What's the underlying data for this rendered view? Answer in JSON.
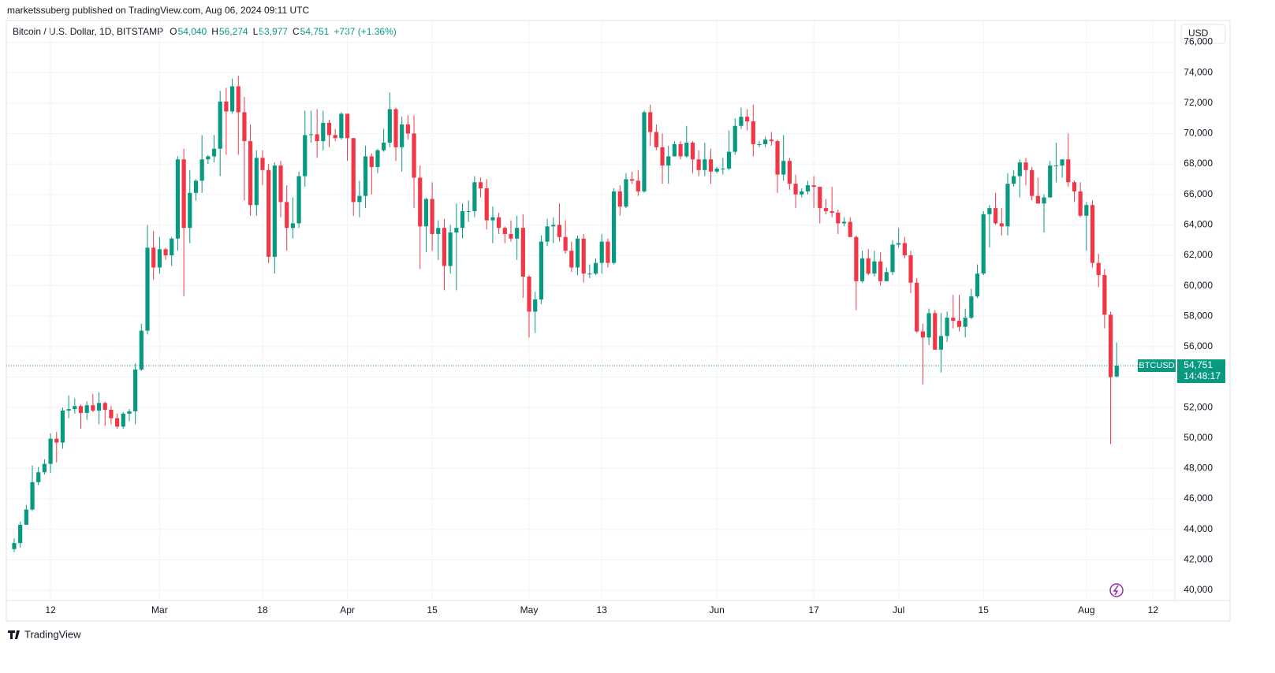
{
  "header": {
    "published": "marketssuberg published on TradingView.com, Aug 06, 2024 09:11 UTC",
    "symbol": "Bitcoin / U.S. Dollar, 1D, BITSTAMP",
    "ohlc": [
      {
        "key": "O",
        "text": "54,040"
      },
      {
        "key": "H",
        "text": "56,274"
      },
      {
        "key": "L",
        "text": "53,977"
      },
      {
        "key": "C",
        "text": "54,751"
      }
    ],
    "change": "+737 (+1.36%)",
    "currency": "USD"
  },
  "footer": {
    "brand": "TradingView"
  },
  "chart_data": {
    "type": "candlestick",
    "up_color": "#089981",
    "down_color": "#f23645",
    "grid": true,
    "ylim": [
      39325,
      77425
    ],
    "yticks": [
      {
        "value": 40000,
        "label": "40,000"
      },
      {
        "value": 42000,
        "label": "42,000"
      },
      {
        "value": 44000,
        "label": "44,000"
      },
      {
        "value": 46000,
        "label": "46,000"
      },
      {
        "value": 48000,
        "label": "48,000"
      },
      {
        "value": 50000,
        "label": "50,000"
      },
      {
        "value": 52000,
        "label": "52,000"
      },
      {
        "value": 54000,
        "label": "54,000"
      },
      {
        "value": 56000,
        "label": "56,000"
      },
      {
        "value": 58000,
        "label": "58,000"
      },
      {
        "value": 60000,
        "label": "60,000"
      },
      {
        "value": 62000,
        "label": "62,000"
      },
      {
        "value": 64000,
        "label": "64,000"
      },
      {
        "value": 66000,
        "label": "66,000"
      },
      {
        "value": 68000,
        "label": "68,000"
      },
      {
        "value": 70000,
        "label": "70,000"
      },
      {
        "value": 72000,
        "label": "72,000"
      },
      {
        "value": 74000,
        "label": "74,000"
      },
      {
        "value": 76000,
        "label": "76,000"
      }
    ],
    "xlim": [
      -1.3,
      191.6
    ],
    "xticks": [
      {
        "value": 6,
        "label": "12"
      },
      {
        "value": 24,
        "label": "Mar"
      },
      {
        "value": 41,
        "label": "18"
      },
      {
        "value": 55,
        "label": "Apr"
      },
      {
        "value": 69,
        "label": "15"
      },
      {
        "value": 85,
        "label": "May"
      },
      {
        "value": 97,
        "label": "13"
      },
      {
        "value": 116,
        "label": "Jun"
      },
      {
        "value": 132,
        "label": "17"
      },
      {
        "value": 146,
        "label": "Jul"
      },
      {
        "value": 160,
        "label": "15"
      },
      {
        "value": 177,
        "label": "Aug"
      },
      {
        "value": 188,
        "label": "12"
      }
    ],
    "last_price": {
      "value": 54751,
      "label": "54,751",
      "symbol": "BTCUSD",
      "countdown": "14:48:17"
    },
    "candles": [
      [
        42700,
        43400,
        42500,
        43100
      ],
      [
        43100,
        44500,
        42800,
        44300
      ],
      [
        44300,
        45600,
        44300,
        45300
      ],
      [
        45300,
        48200,
        45200,
        47100
      ],
      [
        47100,
        48100,
        46900,
        47750
      ],
      [
        47750,
        48600,
        47600,
        48300
      ],
      [
        48300,
        50300,
        47700,
        49950
      ],
      [
        49950,
        50400,
        48400,
        49700
      ],
      [
        49700,
        52000,
        49300,
        51800
      ],
      [
        51800,
        52800,
        51300,
        51900
      ],
      [
        51900,
        52600,
        51600,
        52100
      ],
      [
        52100,
        52200,
        50600,
        51650
      ],
      [
        51650,
        52400,
        51200,
        52150
      ],
      [
        52150,
        52900,
        51700,
        51800
      ],
      [
        51800,
        53000,
        50900,
        52300
      ],
      [
        52300,
        52400,
        50800,
        51850
      ],
      [
        51850,
        52100,
        50900,
        51300
      ],
      [
        51300,
        51600,
        50600,
        50750
      ],
      [
        50750,
        51700,
        50600,
        51600
      ],
      [
        51600,
        51900,
        51100,
        51750
      ],
      [
        51750,
        54900,
        50900,
        54500
      ],
      [
        54500,
        57500,
        54400,
        57050
      ],
      [
        57050,
        64000,
        56800,
        62500
      ],
      [
        62500,
        63600,
        60400,
        61200
      ],
      [
        61200,
        63200,
        60800,
        62400
      ],
      [
        62400,
        62500,
        61700,
        62000
      ],
      [
        62000,
        63200,
        61300,
        63100
      ],
      [
        63100,
        68500,
        62300,
        68300
      ],
      [
        68300,
        69000,
        59300,
        63800
      ],
      [
        63800,
        67600,
        62800,
        66100
      ],
      [
        66100,
        67000,
        65600,
        66900
      ],
      [
        66900,
        69900,
        66100,
        68300
      ],
      [
        68300,
        68600,
        68000,
        68500
      ],
      [
        68500,
        69900,
        68100,
        69000
      ],
      [
        69000,
        72800,
        67200,
        72100
      ],
      [
        72100,
        73000,
        68600,
        71450
      ],
      [
        71450,
        73600,
        71300,
        73100
      ],
      [
        73100,
        73800,
        68600,
        71400
      ],
      [
        71400,
        72400,
        65600,
        69500
      ],
      [
        69500,
        70600,
        64600,
        65300
      ],
      [
        65300,
        68900,
        64600,
        68400
      ],
      [
        68400,
        68900,
        66600,
        67600
      ],
      [
        67600,
        68000,
        61500,
        61900
      ],
      [
        61900,
        68100,
        60800,
        67900
      ],
      [
        67900,
        68200,
        64500,
        65500
      ],
      [
        65500,
        66600,
        62300,
        63800
      ],
      [
        63800,
        65800,
        63100,
        64100
      ],
      [
        64100,
        67500,
        63800,
        67200
      ],
      [
        67200,
        71500,
        66500,
        69900
      ],
      [
        69900,
        71500,
        69400,
        69950
      ],
      [
        69950,
        71600,
        68400,
        69500
      ],
      [
        69500,
        71500,
        68900,
        70700
      ],
      [
        70700,
        70900,
        69100,
        69900
      ],
      [
        69900,
        70300,
        69500,
        69700
      ],
      [
        69700,
        71400,
        69600,
        71300
      ],
      [
        71300,
        71300,
        68200,
        69700
      ],
      [
        69700,
        69700,
        64600,
        65500
      ],
      [
        65500,
        66900,
        64500,
        65900
      ],
      [
        65900,
        69200,
        65100,
        68500
      ],
      [
        68500,
        68700,
        66000,
        67800
      ],
      [
        67800,
        69000,
        67400,
        68900
      ],
      [
        68900,
        70300,
        68800,
        69400
      ],
      [
        69400,
        72700,
        69100,
        71600
      ],
      [
        71600,
        71700,
        68200,
        69100
      ],
      [
        69100,
        71100,
        67500,
        70600
      ],
      [
        70600,
        71200,
        69600,
        70000
      ],
      [
        70000,
        71200,
        65100,
        67100
      ],
      [
        67100,
        67900,
        61100,
        63900
      ],
      [
        63900,
        65800,
        62200,
        65700
      ],
      [
        65700,
        66800,
        62300,
        63400
      ],
      [
        63400,
        64300,
        61700,
        63800
      ],
      [
        63800,
        64400,
        59700,
        61300
      ],
      [
        61300,
        64000,
        60800,
        63500
      ],
      [
        63500,
        65400,
        59700,
        63800
      ],
      [
        63800,
        65400,
        63100,
        64900
      ],
      [
        64900,
        65600,
        64200,
        64900
      ],
      [
        64900,
        67200,
        64500,
        66800
      ],
      [
        66800,
        67100,
        65800,
        66400
      ],
      [
        66400,
        67000,
        63700,
        64300
      ],
      [
        64300,
        65200,
        62800,
        64500
      ],
      [
        64500,
        64800,
        63400,
        63800
      ],
      [
        63800,
        63900,
        62800,
        63400
      ],
      [
        63400,
        64300,
        62900,
        63100
      ],
      [
        63100,
        64600,
        61700,
        63800
      ],
      [
        63800,
        64700,
        59200,
        60600
      ],
      [
        60600,
        60700,
        56600,
        58300
      ],
      [
        58300,
        59600,
        56900,
        59100
      ],
      [
        59100,
        63300,
        58800,
        62900
      ],
      [
        62900,
        64400,
        62600,
        63900
      ],
      [
        63900,
        64500,
        62800,
        64000
      ],
      [
        64000,
        65400,
        62900,
        63200
      ],
      [
        63200,
        64300,
        62100,
        62300
      ],
      [
        62300,
        62900,
        60900,
        61200
      ],
      [
        61200,
        63300,
        60700,
        63100
      ],
      [
        63100,
        63400,
        60200,
        60800
      ],
      [
        60800,
        61400,
        60500,
        60800
      ],
      [
        60800,
        61800,
        60700,
        61500
      ],
      [
        61500,
        63400,
        60800,
        62900
      ],
      [
        62900,
        63100,
        61200,
        61500
      ],
      [
        61500,
        66400,
        61400,
        66200
      ],
      [
        66200,
        66600,
        64600,
        65200
      ],
      [
        65200,
        67400,
        65100,
        67000
      ],
      [
        67000,
        67500,
        66700,
        66900
      ],
      [
        66900,
        67600,
        65900,
        66200
      ],
      [
        66200,
        71500,
        66100,
        71400
      ],
      [
        71400,
        71900,
        69200,
        70100
      ],
      [
        70100,
        70600,
        68900,
        69100
      ],
      [
        69100,
        70000,
        66700,
        67900
      ],
      [
        67900,
        69200,
        66700,
        68500
      ],
      [
        68500,
        69500,
        68500,
        69300
      ],
      [
        69300,
        69500,
        68300,
        68500
      ],
      [
        68500,
        70500,
        68400,
        69400
      ],
      [
        69400,
        69500,
        67400,
        68300
      ],
      [
        68300,
        68900,
        67200,
        67600
      ],
      [
        67600,
        69400,
        67200,
        68300
      ],
      [
        68300,
        69000,
        66700,
        67500
      ],
      [
        67500,
        67800,
        67400,
        67700
      ],
      [
        67700,
        68400,
        67300,
        67700
      ],
      [
        67700,
        70200,
        67600,
        68800
      ],
      [
        68800,
        71000,
        68600,
        70500
      ],
      [
        70500,
        71700,
        70300,
        71100
      ],
      [
        71100,
        71600,
        70200,
        70800
      ],
      [
        70800,
        71900,
        68500,
        69300
      ],
      [
        69300,
        69500,
        69100,
        69300
      ],
      [
        69300,
        69800,
        69100,
        69600
      ],
      [
        69600,
        70100,
        69200,
        69500
      ],
      [
        69500,
        69600,
        66100,
        67300
      ],
      [
        67300,
        69900,
        66900,
        68200
      ],
      [
        68200,
        68400,
        66300,
        66700
      ],
      [
        66700,
        67300,
        65100,
        66000
      ],
      [
        66000,
        66400,
        65800,
        66200
      ],
      [
        66200,
        66900,
        66000,
        66600
      ],
      [
        66600,
        67200,
        65100,
        66500
      ],
      [
        66500,
        66500,
        64100,
        65100
      ],
      [
        65100,
        65700,
        64700,
        64900
      ],
      [
        64900,
        66500,
        64500,
        64800
      ],
      [
        64800,
        65000,
        63400,
        64100
      ],
      [
        64100,
        64500,
        63900,
        64200
      ],
      [
        64200,
        64500,
        63200,
        63200
      ],
      [
        63200,
        63300,
        58400,
        60300
      ],
      [
        60300,
        62300,
        60200,
        61800
      ],
      [
        61800,
        62400,
        60700,
        60800
      ],
      [
        60800,
        62300,
        60600,
        61600
      ],
      [
        61600,
        62200,
        60000,
        60300
      ],
      [
        60300,
        61200,
        60300,
        60900
      ],
      [
        60900,
        63000,
        60700,
        62700
      ],
      [
        62700,
        63800,
        62500,
        62800
      ],
      [
        62800,
        63200,
        61800,
        62000
      ],
      [
        62000,
        62300,
        59500,
        60200
      ],
      [
        60200,
        60500,
        56900,
        57000
      ],
      [
        57000,
        57500,
        53500,
        56600
      ],
      [
        56600,
        58500,
        56100,
        58200
      ],
      [
        58200,
        58400,
        55800,
        55800
      ],
      [
        55800,
        58200,
        54300,
        56700
      ],
      [
        56700,
        58300,
        56300,
        57900
      ],
      [
        57900,
        59400,
        57200,
        57700
      ],
      [
        57700,
        59400,
        57000,
        57300
      ],
      [
        57300,
        58500,
        56600,
        57900
      ],
      [
        57900,
        59800,
        57800,
        59300
      ],
      [
        59300,
        61400,
        59200,
        60800
      ],
      [
        60800,
        64900,
        60700,
        64700
      ],
      [
        64700,
        65300,
        62500,
        65100
      ],
      [
        65100,
        66100,
        64000,
        64100
      ],
      [
        64100,
        65100,
        63300,
        63900
      ],
      [
        63900,
        67400,
        63300,
        66700
      ],
      [
        66700,
        67600,
        66500,
        67200
      ],
      [
        67200,
        68300,
        65800,
        68100
      ],
      [
        68100,
        68400,
        66600,
        67600
      ],
      [
        67600,
        67800,
        65600,
        65900
      ],
      [
        65900,
        67100,
        65600,
        65400
      ],
      [
        65400,
        66000,
        63500,
        65800
      ],
      [
        65800,
        68200,
        65800,
        67900
      ],
      [
        67900,
        69400,
        66800,
        67900
      ],
      [
        67900,
        68300,
        67100,
        68300
      ],
      [
        68300,
        70000,
        66500,
        66800
      ],
      [
        66800,
        66900,
        65500,
        66200
      ],
      [
        66200,
        66800,
        64500,
        64600
      ],
      [
        64600,
        65500,
        62300,
        65300
      ],
      [
        65300,
        65600,
        61200,
        61500
      ],
      [
        61500,
        62100,
        59900,
        60700
      ],
      [
        60700,
        61100,
        57200,
        58100
      ],
      [
        58100,
        58300,
        49600,
        54000
      ],
      [
        54040,
        56274,
        53977,
        54751
      ]
    ]
  }
}
